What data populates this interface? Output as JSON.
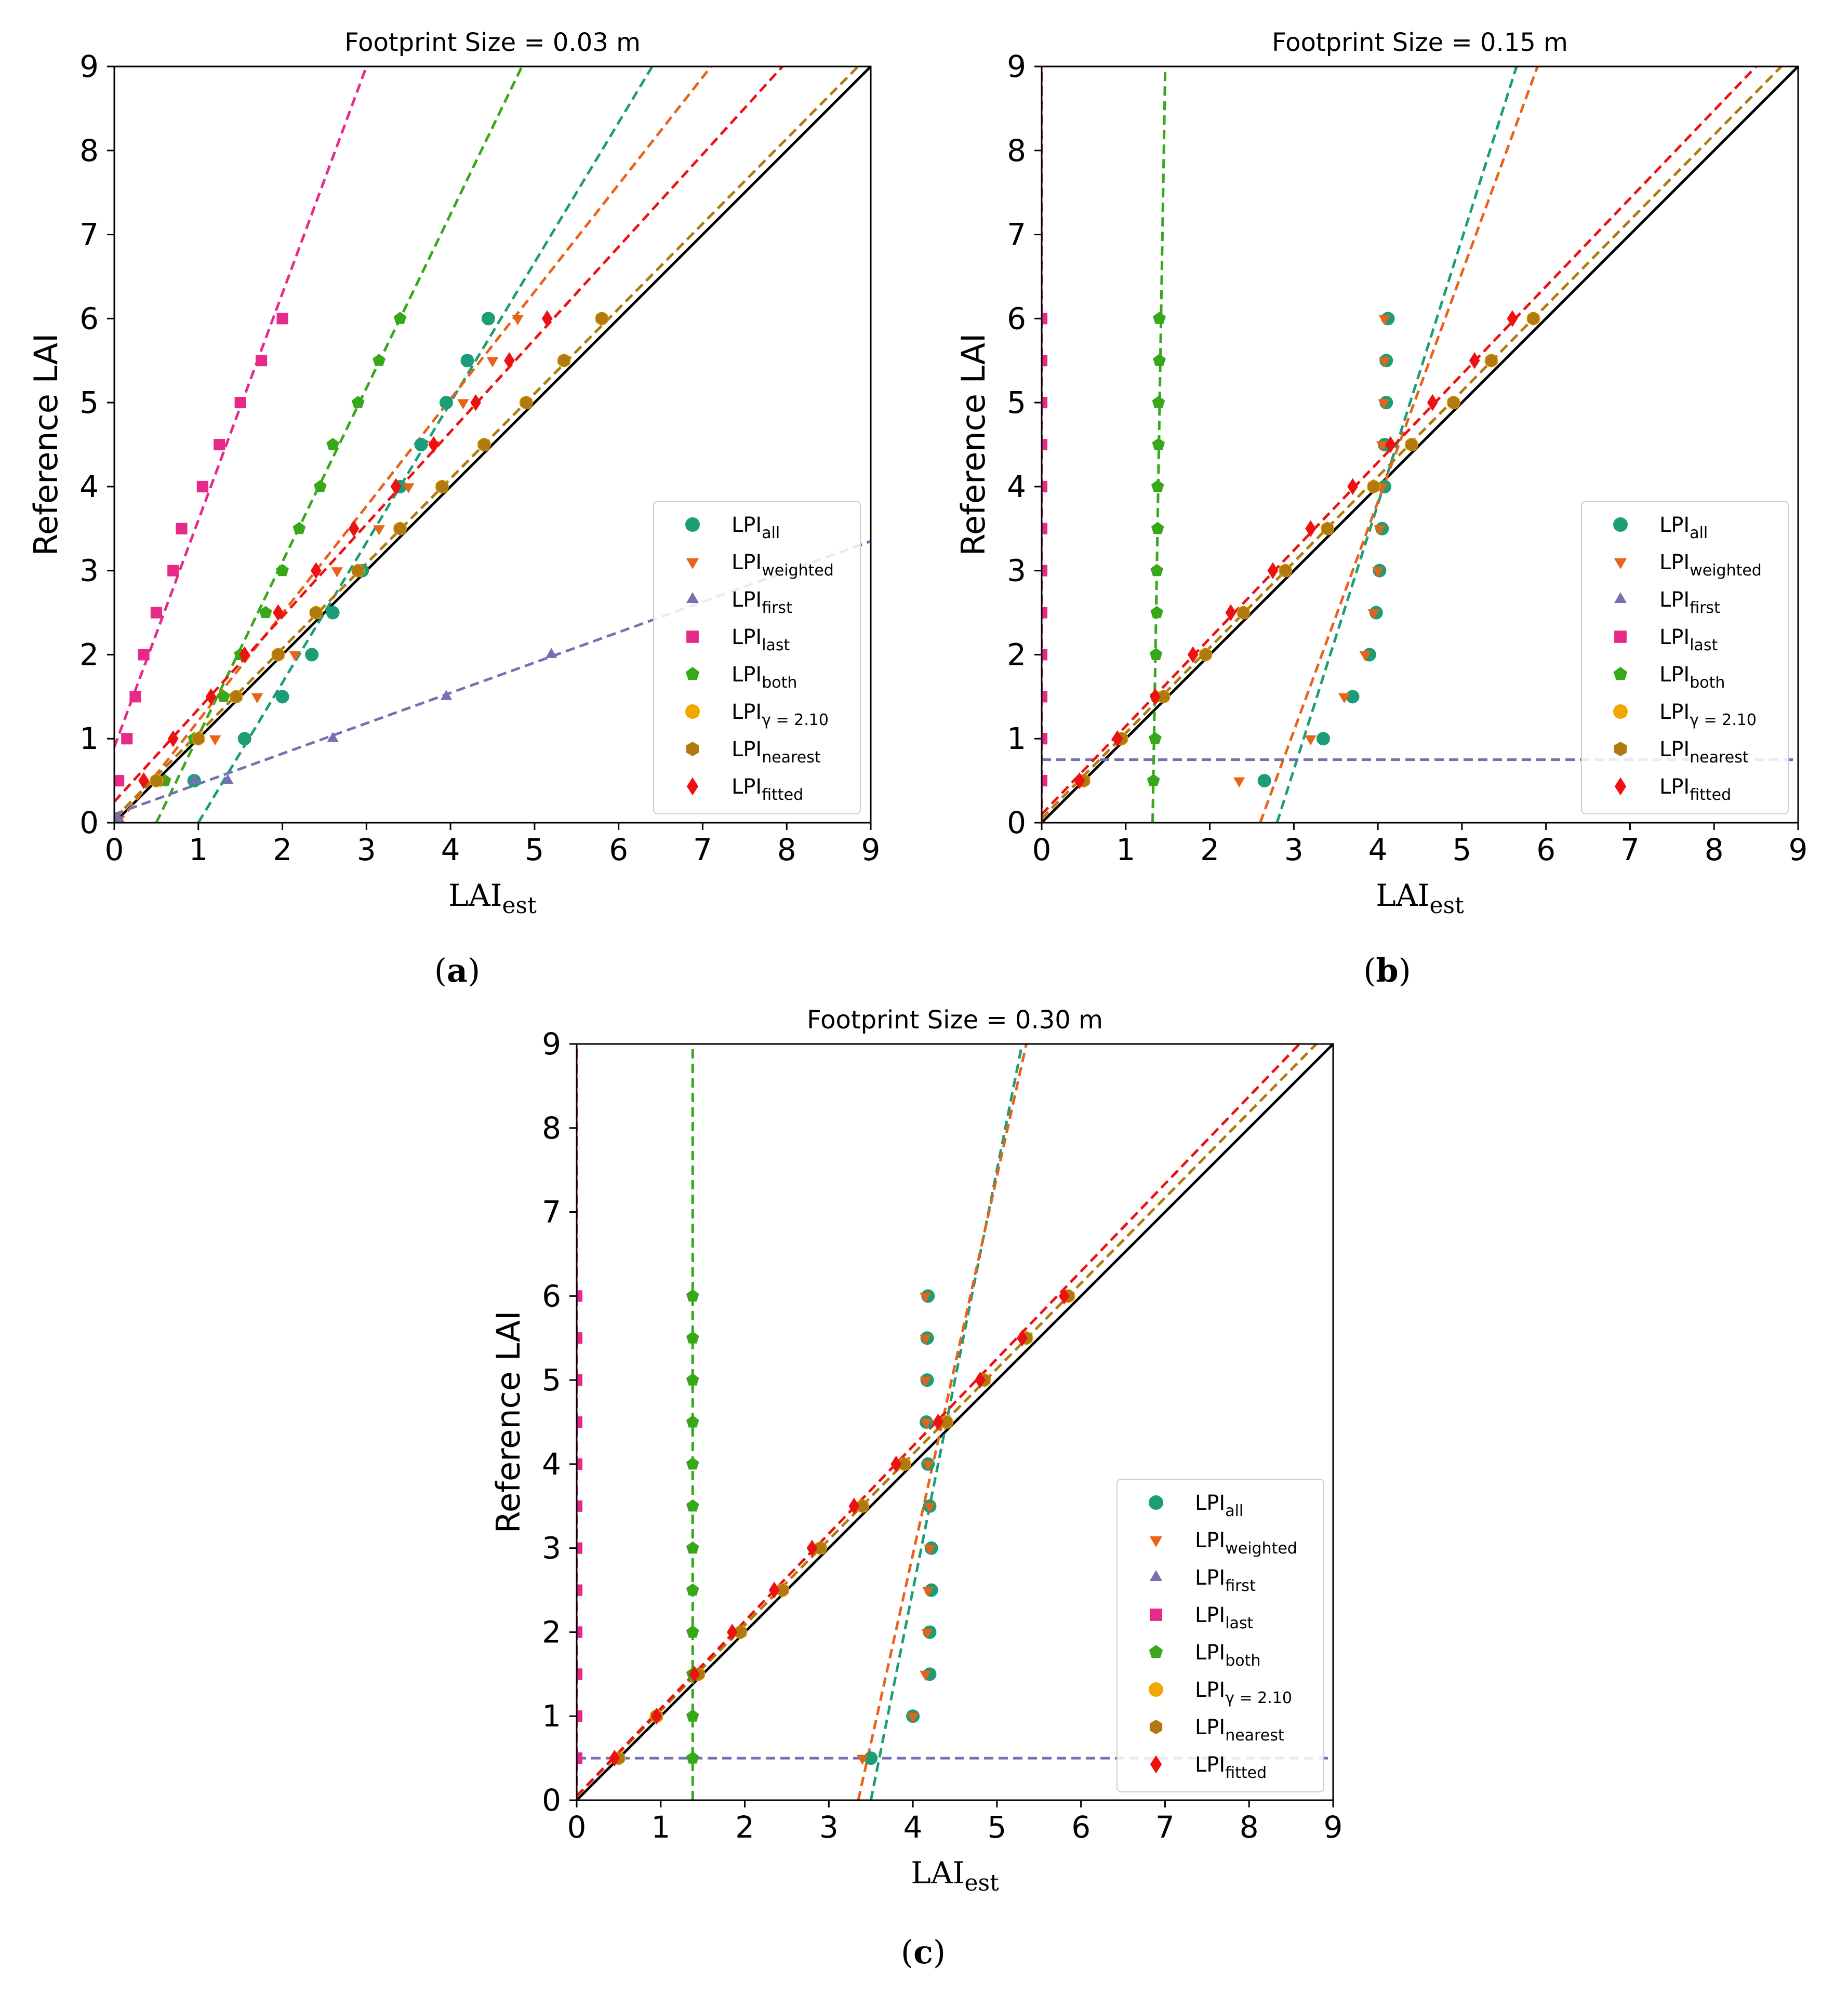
{
  "figure": {
    "captions": [
      "(a)",
      "(b)",
      "(c)"
    ]
  },
  "legend_entries": [
    {
      "key": "all",
      "base": "LPI",
      "sub": "all",
      "marker": "circle",
      "color": "#1b9e77"
    },
    {
      "key": "weighted",
      "base": "LPI",
      "sub": "weighted",
      "marker": "tri-down",
      "color": "#e8631a"
    },
    {
      "key": "first",
      "base": "LPI",
      "sub": "first",
      "marker": "tri-up",
      "color": "#7570b3"
    },
    {
      "key": "last",
      "base": "LPI",
      "sub": "last",
      "marker": "square",
      "color": "#e7298a"
    },
    {
      "key": "both",
      "base": "LPI",
      "sub": "both",
      "marker": "pentagon",
      "color": "#37a81a"
    },
    {
      "key": "gamma",
      "base": "LPI",
      "sub": "γ = 2.10",
      "marker": "circle",
      "color": "#f0a800"
    },
    {
      "key": "nearest",
      "base": "LPI",
      "sub": "nearest",
      "marker": "hexagon",
      "color": "#b07a10"
    },
    {
      "key": "fitted",
      "base": "LPI",
      "sub": "fitted",
      "marker": "diamond",
      "color": "#ee1111"
    }
  ],
  "chart_data": [
    {
      "type": "scatter",
      "panel": "a",
      "title": "Footprint Size = 0.03 m",
      "xlabel_base": "LAI",
      "xlabel_sub": "est",
      "ylabel": "Reference LAI",
      "xlim": [
        0,
        9
      ],
      "ylim": [
        0,
        9
      ],
      "ticks": [
        0,
        1,
        2,
        3,
        4,
        5,
        6,
        7,
        8,
        9
      ],
      "identity_line": true,
      "legend_position": "lower-right",
      "series": [
        {
          "key": "last",
          "x": [
            0.05,
            0.15,
            0.25,
            0.35,
            0.5,
            0.7,
            0.8,
            1.05,
            1.25,
            1.5,
            1.75,
            2.0
          ],
          "y": [
            0.5,
            1,
            1.5,
            2,
            2.5,
            3,
            3.5,
            4,
            4.5,
            5,
            5.5,
            6
          ],
          "fit": [
            [
              0,
              0.9
            ],
            [
              3,
              9
            ]
          ]
        },
        {
          "key": "both",
          "x": [
            0.6,
            0.95,
            1.3,
            1.5,
            1.8,
            2.0,
            2.2,
            2.45,
            2.6,
            2.9,
            3.15,
            3.4
          ],
          "y": [
            0.5,
            1,
            1.5,
            2,
            2.5,
            3,
            3.5,
            4,
            4.5,
            5,
            5.5,
            6
          ],
          "fit": [
            [
              0.5,
              0
            ],
            [
              4.85,
              9
            ]
          ]
        },
        {
          "key": "all",
          "x": [
            0.95,
            1.55,
            2.0,
            2.35,
            2.6,
            2.95,
            3.4,
            3.65,
            3.95,
            4.2,
            4.45
          ],
          "y": [
            0.5,
            1,
            1.5,
            2,
            2.5,
            3,
            4,
            4.5,
            5,
            5.5,
            6
          ],
          "fit": [
            [
              1.0,
              0
            ],
            [
              6.4,
              9
            ]
          ]
        },
        {
          "key": "weighted",
          "x": [
            0.55,
            1.2,
            1.7,
            2.15,
            2.4,
            2.65,
            3.15,
            3.5,
            3.8,
            4.15,
            4.5,
            4.8
          ],
          "y": [
            0.5,
            1,
            1.5,
            2,
            2.5,
            3,
            3.5,
            4,
            4.5,
            5,
            5.5,
            6
          ],
          "fit": [
            [
              0.05,
              0
            ],
            [
              7.1,
              9
            ]
          ]
        },
        {
          "key": "first",
          "x": [
            0.05,
            0.95,
            1.35,
            2.6,
            3.95,
            5.2
          ],
          "y": [
            0.05,
            0.5,
            0.5,
            1,
            1.5,
            2
          ],
          "fit": [
            [
              0,
              0.1
            ],
            [
              9,
              3.35
            ]
          ]
        },
        {
          "key": "nearest",
          "x": [
            0.5,
            1.0,
            1.45,
            1.95,
            2.4,
            2.9,
            3.4,
            3.9,
            4.4,
            4.9,
            5.35,
            5.8
          ],
          "y": [
            0.5,
            1,
            1.5,
            2,
            2.5,
            3,
            3.5,
            4,
            4.5,
            5,
            5.5,
            6
          ],
          "fit": [
            [
              0,
              0.05
            ],
            [
              8.85,
              9
            ]
          ]
        },
        {
          "key": "gamma",
          "x": [
            0.5,
            1.0,
            1.45,
            1.95,
            2.4,
            2.9,
            3.4,
            3.9,
            4.4,
            4.9,
            5.35,
            5.8
          ],
          "y": [
            0.5,
            1,
            1.5,
            2,
            2.5,
            3,
            3.5,
            4,
            4.5,
            5,
            5.5,
            6
          ],
          "fit": [
            [
              0,
              0.05
            ],
            [
              8.85,
              9
            ]
          ]
        },
        {
          "key": "fitted",
          "x": [
            0.35,
            0.7,
            1.15,
            1.55,
            1.95,
            2.4,
            2.85,
            3.35,
            3.8,
            4.3,
            4.7,
            5.15
          ],
          "y": [
            0.5,
            1,
            1.5,
            2,
            2.5,
            3,
            3.5,
            4,
            4.5,
            5,
            5.5,
            6
          ],
          "fit": [
            [
              0,
              0.25
            ],
            [
              7.95,
              9
            ]
          ]
        }
      ]
    },
    {
      "type": "scatter",
      "panel": "b",
      "title": "Footprint Size = 0.15 m",
      "xlabel_base": "LAI",
      "xlabel_sub": "est",
      "ylabel": "Reference LAI",
      "xlim": [
        0,
        9
      ],
      "ylim": [
        0,
        9
      ],
      "ticks": [
        0,
        1,
        2,
        3,
        4,
        5,
        6,
        7,
        8,
        9
      ],
      "identity_line": true,
      "legend_position": "lower-right",
      "series": [
        {
          "key": "last",
          "x": [
            0,
            0,
            0,
            0,
            0,
            0,
            0,
            0,
            0,
            0,
            0,
            0
          ],
          "y": [
            0.5,
            1,
            1.5,
            2,
            2.5,
            3,
            3.5,
            4,
            4.5,
            5,
            5.5,
            6
          ],
          "fit": [
            [
              0,
              0
            ],
            [
              0,
              9
            ]
          ]
        },
        {
          "key": "both",
          "x": [
            1.33,
            1.35,
            1.36,
            1.36,
            1.37,
            1.37,
            1.38,
            1.38,
            1.39,
            1.39,
            1.4,
            1.4
          ],
          "y": [
            0.5,
            1,
            1.5,
            2,
            2.5,
            3,
            3.5,
            4,
            4.5,
            5,
            5.5,
            6
          ],
          "fit": [
            [
              1.32,
              0
            ],
            [
              1.47,
              9
            ]
          ]
        },
        {
          "key": "all",
          "x": [
            2.65,
            3.35,
            3.7,
            3.9,
            3.98,
            4.02,
            4.05,
            4.08,
            4.08,
            4.1,
            4.1,
            4.12
          ],
          "y": [
            0.5,
            1,
            1.5,
            2,
            2.5,
            3,
            3.5,
            4,
            4.5,
            5,
            5.5,
            6
          ],
          "fit": [
            [
              2.8,
              0
            ],
            [
              5.65,
              9
            ]
          ]
        },
        {
          "key": "weighted",
          "x": [
            2.35,
            3.2,
            3.6,
            3.85,
            3.95,
            4.0,
            4.02,
            4.05,
            4.05,
            4.07,
            4.08,
            4.08
          ],
          "y": [
            0.5,
            1,
            1.5,
            2,
            2.5,
            3,
            3.5,
            4,
            4.5,
            5,
            5.5,
            6
          ],
          "fit": [
            [
              2.6,
              0
            ],
            [
              5.9,
              9
            ]
          ]
        },
        {
          "key": "first",
          "x": [],
          "y": [],
          "fit": [
            [
              0,
              0.75
            ],
            [
              9,
              0.75
            ]
          ]
        },
        {
          "key": "nearest",
          "x": [
            0.5,
            0.95,
            1.45,
            1.95,
            2.4,
            2.9,
            3.4,
            3.95,
            4.4,
            4.9,
            5.35,
            5.85
          ],
          "y": [
            0.5,
            1,
            1.5,
            2,
            2.5,
            3,
            3.5,
            4,
            4.5,
            5,
            5.5,
            6
          ],
          "fit": [
            [
              0,
              0.05
            ],
            [
              8.8,
              9
            ]
          ]
        },
        {
          "key": "gamma",
          "x": [
            0.5,
            0.95,
            1.45,
            1.95,
            2.4,
            2.9,
            3.4,
            3.95,
            4.4,
            4.9,
            5.35,
            5.85
          ],
          "y": [
            0.5,
            1,
            1.5,
            2,
            2.5,
            3,
            3.5,
            4,
            4.5,
            5,
            5.5,
            6
          ],
          "fit": [
            [
              0,
              0.05
            ],
            [
              8.8,
              9
            ]
          ]
        },
        {
          "key": "fitted",
          "x": [
            0.45,
            0.9,
            1.35,
            1.8,
            2.25,
            2.75,
            3.2,
            3.7,
            4.15,
            4.65,
            5.15,
            5.6
          ],
          "y": [
            0.5,
            1,
            1.5,
            2,
            2.5,
            3,
            3.5,
            4,
            4.5,
            5,
            5.5,
            6
          ],
          "fit": [
            [
              0,
              0.1
            ],
            [
              8.5,
              9
            ]
          ]
        }
      ]
    },
    {
      "type": "scatter",
      "panel": "c",
      "title": "Footprint Size = 0.30 m",
      "xlabel_base": "LAI",
      "xlabel_sub": "est",
      "ylabel": "Reference LAI",
      "xlim": [
        0,
        9
      ],
      "ylim": [
        0,
        9
      ],
      "ticks": [
        0,
        1,
        2,
        3,
        4,
        5,
        6,
        7,
        8,
        9
      ],
      "identity_line": true,
      "legend_position": "lower-right",
      "series": [
        {
          "key": "last",
          "x": [
            0,
            0,
            0,
            0,
            0,
            0,
            0,
            0,
            0,
            0,
            0,
            0
          ],
          "y": [
            0.5,
            1,
            1.5,
            2,
            2.5,
            3,
            3.5,
            4,
            4.5,
            5,
            5.5,
            6
          ],
          "fit": [
            [
              0,
              0
            ],
            [
              0,
              9
            ]
          ]
        },
        {
          "key": "both",
          "x": [
            1.38,
            1.38,
            1.38,
            1.38,
            1.38,
            1.38,
            1.38,
            1.38,
            1.38,
            1.38,
            1.38,
            1.38
          ],
          "y": [
            0.5,
            1,
            1.5,
            2,
            2.5,
            3,
            3.5,
            4,
            4.5,
            5,
            5.5,
            6
          ],
          "fit": [
            [
              1.38,
              0
            ],
            [
              1.38,
              9
            ]
          ]
        },
        {
          "key": "all",
          "x": [
            3.5,
            4.0,
            4.2,
            4.2,
            4.22,
            4.22,
            4.2,
            4.18,
            4.16,
            4.17,
            4.17,
            4.18
          ],
          "y": [
            0.5,
            1,
            1.5,
            2,
            2.5,
            3,
            3.5,
            4,
            4.5,
            5,
            5.5,
            6
          ],
          "fit": [
            [
              3.5,
              0
            ],
            [
              5.3,
              9
            ]
          ]
        },
        {
          "key": "weighted",
          "x": [
            3.4,
            4.0,
            4.15,
            4.17,
            4.18,
            4.2,
            4.2,
            4.18,
            4.16,
            4.15,
            4.15,
            4.15
          ],
          "y": [
            0.5,
            1,
            1.5,
            2,
            2.5,
            3,
            3.5,
            4,
            4.5,
            5,
            5.5,
            6
          ],
          "fit": [
            [
              3.35,
              0
            ],
            [
              5.35,
              9
            ]
          ]
        },
        {
          "key": "first",
          "x": [],
          "y": [],
          "fit": [
            [
              0,
              0.5
            ],
            [
              9,
              0.5
            ]
          ]
        },
        {
          "key": "nearest",
          "x": [
            0.5,
            0.95,
            1.45,
            1.95,
            2.45,
            2.9,
            3.4,
            3.9,
            4.4,
            4.85,
            5.35,
            5.85
          ],
          "y": [
            0.5,
            1,
            1.5,
            2,
            2.5,
            3,
            3.5,
            4,
            4.5,
            5,
            5.5,
            6
          ],
          "fit": [
            [
              0,
              0.05
            ],
            [
              8.8,
              9
            ]
          ]
        },
        {
          "key": "gamma",
          "x": [
            0.5,
            0.95,
            1.45,
            1.95,
            2.45,
            2.9,
            3.4,
            3.9,
            4.4,
            4.85,
            5.35,
            5.85
          ],
          "y": [
            0.5,
            1,
            1.5,
            2,
            2.5,
            3,
            3.5,
            4,
            4.5,
            5,
            5.5,
            6
          ],
          "fit": [
            [
              0,
              0.05
            ],
            [
              8.8,
              9
            ]
          ]
        },
        {
          "key": "fitted",
          "x": [
            0.45,
            0.95,
            1.4,
            1.85,
            2.35,
            2.8,
            3.3,
            3.8,
            4.3,
            4.8,
            5.3,
            5.8
          ],
          "y": [
            0.5,
            1,
            1.5,
            2,
            2.5,
            3,
            3.5,
            4,
            4.5,
            5,
            5.5,
            6
          ],
          "fit": [
            [
              0,
              0.05
            ],
            [
              8.6,
              9
            ]
          ]
        }
      ]
    }
  ]
}
